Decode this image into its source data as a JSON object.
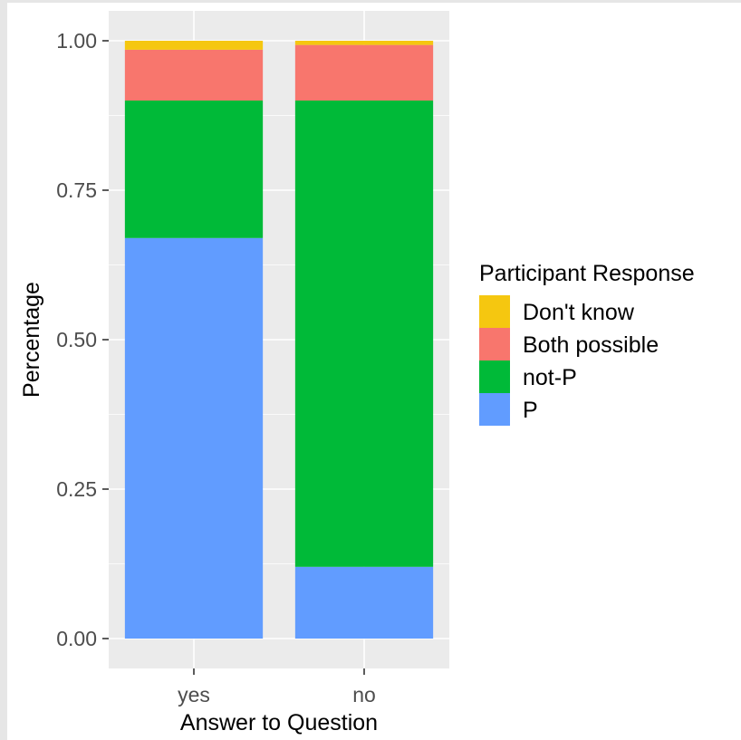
{
  "chart_data": {
    "type": "bar",
    "stacked": true,
    "categories": [
      "yes",
      "no"
    ],
    "series": [
      {
        "name": "P",
        "color": "#619CFF",
        "values": [
          0.67,
          0.12
        ]
      },
      {
        "name": "not-P",
        "color": "#00BA38",
        "values": [
          0.23,
          0.78
        ]
      },
      {
        "name": "Both possible",
        "color": "#F8766D",
        "values": [
          0.085,
          0.093
        ]
      },
      {
        "name": "Don't know",
        "color": "#F5C710",
        "values": [
          0.015,
          0.007
        ]
      }
    ],
    "xlabel": "Answer to Question",
    "ylabel": "Percentage",
    "ylim": [
      0,
      1
    ],
    "yticks": [
      "0.00",
      "0.25",
      "0.50",
      "0.75",
      "1.00"
    ],
    "ytick_values": [
      0,
      0.25,
      0.5,
      0.75,
      1.0
    ],
    "legend": {
      "title": "Participant Response",
      "position": "right",
      "entries": [
        "Don't know",
        "Both possible",
        "not-P",
        "P"
      ]
    },
    "grid": true,
    "panel_background": "#EBEBEB"
  }
}
